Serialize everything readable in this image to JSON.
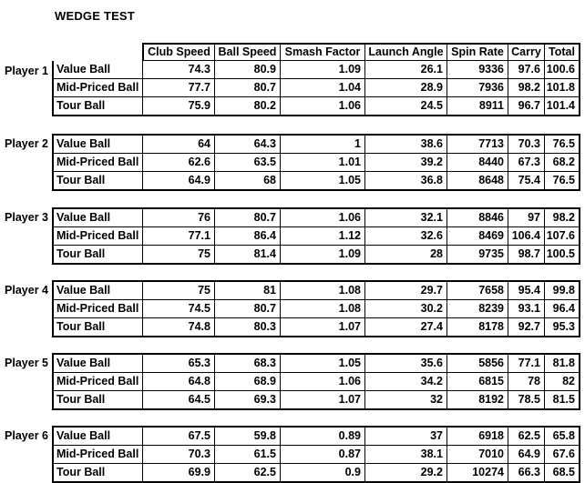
{
  "title": "WEDGE TEST",
  "colors": {
    "text": "#000000",
    "border": "#000000",
    "background": "#ffffff"
  },
  "chart_data": {
    "type": "table",
    "title": "WEDGE TEST",
    "columns": [
      "Club Speed",
      "Ball Speed",
      "Smash Factor",
      "Launch Angle",
      "Spin Rate",
      "Carry",
      "Total"
    ],
    "ball_types": [
      "Value Ball",
      "Mid-Priced Ball",
      "Tour Ball"
    ],
    "players": [
      {
        "name": "Player 1",
        "rows": [
          {
            "ball": "Value Ball",
            "values": [
              74.3,
              80.9,
              1.09,
              26.1,
              9336,
              97.6,
              100.6
            ]
          },
          {
            "ball": "Mid-Priced Ball",
            "values": [
              77.7,
              80.7,
              1.04,
              28.9,
              7936,
              98.2,
              101.8
            ]
          },
          {
            "ball": "Tour Ball",
            "values": [
              75.9,
              80.2,
              1.06,
              24.5,
              8911,
              96.7,
              101.4
            ]
          }
        ]
      },
      {
        "name": "Player 2",
        "rows": [
          {
            "ball": "Value Ball",
            "values": [
              64,
              64.3,
              1,
              38.6,
              7713,
              70.3,
              76.5
            ]
          },
          {
            "ball": "Mid-Priced Ball",
            "values": [
              62.6,
              63.5,
              1.01,
              39.2,
              8440,
              67.3,
              68.2
            ]
          },
          {
            "ball": "Tour Ball",
            "values": [
              64.9,
              68,
              1.05,
              36.8,
              8648,
              75.4,
              76.5
            ]
          }
        ]
      },
      {
        "name": "Player 3",
        "rows": [
          {
            "ball": "Value Ball",
            "values": [
              76,
              80.7,
              1.06,
              32.1,
              8846,
              97,
              98.2
            ]
          },
          {
            "ball": "Mid-Priced Ball",
            "values": [
              77.1,
              86.4,
              1.12,
              32.6,
              8469,
              106.4,
              107.6
            ]
          },
          {
            "ball": "Tour Ball",
            "values": [
              75,
              81.4,
              1.09,
              28,
              9735,
              98.7,
              100.5
            ]
          }
        ]
      },
      {
        "name": "Player 4",
        "rows": [
          {
            "ball": "Value Ball",
            "values": [
              75,
              81,
              1.08,
              29.7,
              7658,
              95.4,
              99.8
            ]
          },
          {
            "ball": "Mid-Priced Ball",
            "values": [
              74.5,
              80.7,
              1.08,
              30.2,
              8239,
              93.1,
              96.4
            ]
          },
          {
            "ball": "Tour Ball",
            "values": [
              74.8,
              80.3,
              1.07,
              27.4,
              8178,
              92.7,
              95.3
            ]
          }
        ]
      },
      {
        "name": "Player 5",
        "rows": [
          {
            "ball": "Value Ball",
            "values": [
              65.3,
              68.3,
              1.05,
              35.6,
              5856,
              77.1,
              81.8
            ]
          },
          {
            "ball": "Mid-Priced Ball",
            "values": [
              64.8,
              68.9,
              1.06,
              34.2,
              6815,
              78,
              82
            ]
          },
          {
            "ball": "Tour Ball",
            "values": [
              64.5,
              69.3,
              1.07,
              32,
              8192,
              78.5,
              81.5
            ]
          }
        ]
      },
      {
        "name": "Player 6",
        "rows": [
          {
            "ball": "Value Ball",
            "values": [
              67.5,
              59.8,
              0.89,
              37,
              6918,
              62.5,
              65.8
            ]
          },
          {
            "ball": "Mid-Priced Ball",
            "values": [
              70.3,
              61.5,
              0.87,
              38.1,
              7010,
              64.9,
              67.6
            ]
          },
          {
            "ball": "Tour Ball",
            "values": [
              69.9,
              62.5,
              0.9,
              29.2,
              10274,
              66.3,
              68.5
            ]
          }
        ]
      }
    ]
  }
}
